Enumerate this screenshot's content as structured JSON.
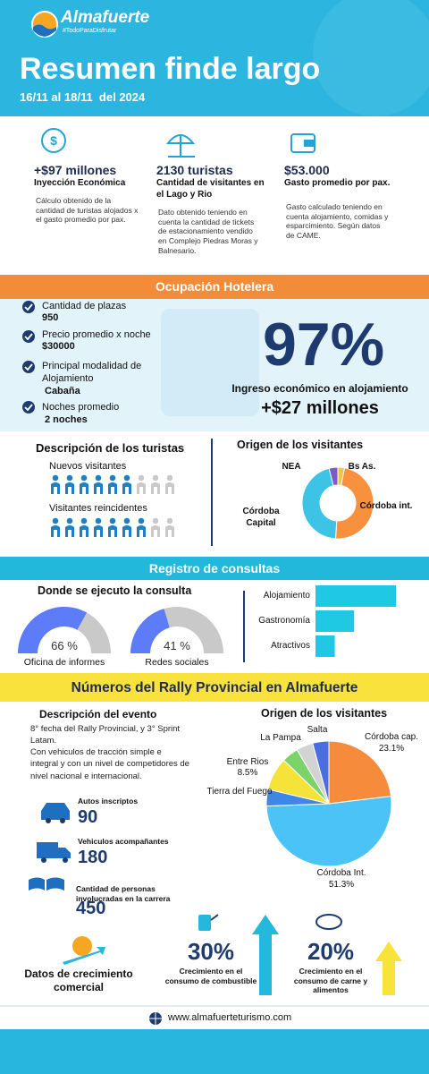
{
  "header": {
    "brand": "Almafuerte",
    "tagline": "#TodoParaDisfrutar",
    "title": "Resumen finde largo",
    "dates": "16/11 al 18/11  del 2024"
  },
  "summary": [
    {
      "value": "+$97 millones",
      "label": "Inyección Económica",
      "description": "Cálculo obtenido de la cantidad de turistas alojados x el gasto promedio por pax."
    },
    {
      "value": "2130 turistas",
      "label": "Cantidad de visitantes en el Lago y Rio",
      "description": "Dato obtenido teniendo en cuenta la cantidad de tickets de estacionamiento vendido en Complejo Piedras Moras y Balnesario."
    },
    {
      "value": "$53.000",
      "label": "Gasto promedio por pax.",
      "description": "Gasto calculado teniendo en cuenta alojamiento, comidas y esparcimiento. Según datos de CAME."
    }
  ],
  "hotel": {
    "title": "Ocupación Hotelera",
    "items": [
      {
        "label": "Cantidad de plazas",
        "value": "950"
      },
      {
        "label": "Precio promedio x noche",
        "value": "$30000"
      },
      {
        "label": "Principal modalidad de Alojamiento",
        "value": "Cabaña"
      },
      {
        "label": "Noches promedio",
        "value": "2 noches"
      }
    ],
    "occupancy": "97%",
    "income_label": "Ingreso económico en alojamiento",
    "income_value": "+$27 millones"
  },
  "tourists": {
    "title": "Descripción de los turistas",
    "rows": [
      {
        "label": "Nuevos visitantes",
        "filled": 6,
        "total": 9
      },
      {
        "label": "Visitantes reincidentes",
        "filled": 7,
        "total": 9
      }
    ]
  },
  "consultas": {
    "title": "Registro de consultas"
  },
  "rally": {
    "title": "Números del Rally Provincial en Almafuerte",
    "event_title": "Descripción del evento",
    "event_text": [
      "8° fecha del Rally Provincial, y 3° Sprint Latam.",
      "Con vehiculos de tracción simple e integral y con un nivel de competidores de nivel nacional e internacional."
    ],
    "stats": [
      {
        "label": "Autos inscriptos",
        "value": 90
      },
      {
        "label": "Vehiculos acompañantes",
        "value": 180
      },
      {
        "label": "Cantidad de personas involucradas en la carrera",
        "value": 450
      }
    ]
  },
  "growth": {
    "title": "Datos de crecimiento comercial",
    "items": [
      {
        "value": 30,
        "value_label": "30%",
        "label": "Crecimiento en el consumo de combustible",
        "color": "#23b8dc"
      },
      {
        "value": 20,
        "value_label": "20%",
        "label": "Crecimiento en el consumo de carne y alimentos",
        "color": "#f7e33a"
      }
    ]
  },
  "footer": {
    "url": "www.almafuerteturismo.com"
  },
  "chart_data": [
    {
      "type": "pie",
      "donut": true,
      "title": "Origen de los visitantes",
      "categories": [
        "Bs As.",
        "Córdoba int.",
        "Córdoba Capital",
        "NEA"
      ],
      "values": [
        3,
        48,
        45,
        4
      ],
      "colors": [
        "#f5c542",
        "#f7913d",
        "#3cc3e6",
        "#7c5cc4"
      ]
    },
    {
      "type": "gauge",
      "title": "Donde se ejecuto la consulta",
      "categories": [
        "Oficina de informes",
        "Redes sociales"
      ],
      "values": [
        66,
        41
      ],
      "value_labels": [
        "66 %",
        "41 %"
      ],
      "ylim": [
        0,
        100
      ],
      "color": "#5c7cfa",
      "track_color": "#c9c9c9"
    },
    {
      "type": "bar",
      "orientation": "horizontal",
      "categories": [
        "Alojamiento",
        "Gastronomía",
        "Atractivos"
      ],
      "values": [
        100,
        48,
        24
      ],
      "xlim": [
        0,
        100
      ],
      "color": "#1fc8e3"
    },
    {
      "type": "pie",
      "title": "Origen de los visitantes",
      "categories": [
        "Córdoba cap.",
        "Córdoba Int.",
        "Tierra del Fuego",
        "Entre Rios",
        "La Pampa",
        "Salta",
        null
      ],
      "values": [
        23.1,
        51.3,
        4.3,
        8.5,
        4.3,
        4.3,
        4.2
      ],
      "value_labels": [
        "23.1%",
        "51.3%",
        null,
        "8.5%",
        null,
        null,
        null
      ],
      "colors": [
        "#f58b3b",
        "#4cc3f7",
        "#3f86e6",
        "#f5e33a",
        "#7cd36b",
        "#d3d3d3",
        "#4a6ee0"
      ]
    }
  ]
}
